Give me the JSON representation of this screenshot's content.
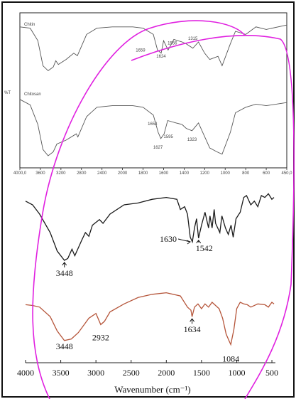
{
  "chart_data": [
    {
      "type": "line",
      "ylabel": "%T",
      "xlim": [
        4000,
        450
      ],
      "x_reversed": true,
      "xticks": [
        "4000,0",
        "3600",
        "3200",
        "2800",
        "2400",
        "2000",
        "1800",
        "1600",
        "1400",
        "1200",
        "1000",
        "800",
        "600",
        "450,0"
      ],
      "series": [
        {
          "name": "Chitin",
          "color": "#555555",
          "points": [
            [
              4000,
              82
            ],
            [
              3800,
              80
            ],
            [
              3650,
              60
            ],
            [
              3550,
              20
            ],
            [
              3450,
              12
            ],
            [
              3350,
              18
            ],
            [
              3300,
              28
            ],
            [
              3250,
              22
            ],
            [
              3100,
              30
            ],
            [
              2950,
              40
            ],
            [
              2880,
              36
            ],
            [
              2700,
              70
            ],
            [
              2500,
              80
            ],
            [
              2200,
              82
            ],
            [
              1900,
              82
            ],
            [
              1800,
              80
            ],
            [
              1700,
              70
            ],
            [
              1659,
              45
            ],
            [
              1624,
              40
            ],
            [
              1600,
              60
            ],
            [
              1556,
              45
            ],
            [
              1500,
              62
            ],
            [
              1420,
              58
            ],
            [
              1380,
              55
            ],
            [
              1315,
              48
            ],
            [
              1260,
              58
            ],
            [
              1200,
              40
            ],
            [
              1150,
              30
            ],
            [
              1070,
              35
            ],
            [
              1030,
              20
            ],
            [
              950,
              55
            ],
            [
              900,
              75
            ],
            [
              800,
              70
            ],
            [
              700,
              82
            ],
            [
              600,
              78
            ],
            [
              450,
              85
            ]
          ],
          "annotations": [
            {
              "x": 1659,
              "label": "1659"
            },
            {
              "x": 1624,
              "label": "1624"
            },
            {
              "x": 1556,
              "label": "1556"
            },
            {
              "x": 1315,
              "label": "1315"
            }
          ]
        },
        {
          "name": "Chitosan",
          "color": "#555555",
          "points": [
            [
              4000,
              82
            ],
            [
              3800,
              75
            ],
            [
              3650,
              50
            ],
            [
              3550,
              18
            ],
            [
              3450,
              10
            ],
            [
              3350,
              15
            ],
            [
              3280,
              25
            ],
            [
              3100,
              30
            ],
            [
              2900,
              38
            ],
            [
              2870,
              34
            ],
            [
              2700,
              60
            ],
            [
              2500,
              72
            ],
            [
              2200,
              74
            ],
            [
              1900,
              74
            ],
            [
              1800,
              72
            ],
            [
              1700,
              62
            ],
            [
              1653,
              40
            ],
            [
              1627,
              32
            ],
            [
              1595,
              38
            ],
            [
              1560,
              55
            ],
            [
              1480,
              52
            ],
            [
              1420,
              50
            ],
            [
              1380,
              45
            ],
            [
              1323,
              42
            ],
            [
              1260,
              52
            ],
            [
              1150,
              20
            ],
            [
              1080,
              15
            ],
            [
              1030,
              12
            ],
            [
              950,
              40
            ],
            [
              900,
              65
            ],
            [
              800,
              72
            ],
            [
              700,
              76
            ],
            [
              600,
              74
            ],
            [
              450,
              78
            ]
          ],
          "annotations": [
            {
              "x": 1653,
              "label": "1653"
            },
            {
              "x": 1595,
              "label": "1595"
            },
            {
              "x": 1627,
              "label": "1627"
            },
            {
              "x": 1323,
              "label": "1323"
            }
          ]
        }
      ]
    },
    {
      "type": "line",
      "xlabel": "Wavenumber (cm⁻¹)",
      "xlim": [
        4000,
        450
      ],
      "x_reversed": true,
      "xticks": [
        4000,
        3500,
        3000,
        2500,
        2000,
        1500,
        1000,
        500
      ],
      "series": [
        {
          "color": "#1a1a1a",
          "points": [
            [
              4000,
              84
            ],
            [
              3900,
              80
            ],
            [
              3800,
              70
            ],
            [
              3650,
              50
            ],
            [
              3550,
              30
            ],
            [
              3448,
              20
            ],
            [
              3400,
              22
            ],
            [
              3340,
              32
            ],
            [
              3300,
              25
            ],
            [
              3200,
              42
            ],
            [
              3150,
              50
            ],
            [
              3100,
              46
            ],
            [
              3050,
              58
            ],
            [
              2950,
              64
            ],
            [
              2900,
              60
            ],
            [
              2800,
              70
            ],
            [
              2600,
              80
            ],
            [
              2400,
              82
            ],
            [
              2200,
              86
            ],
            [
              2000,
              88
            ],
            [
              1850,
              86
            ],
            [
              1800,
              75
            ],
            [
              1740,
              78
            ],
            [
              1700,
              70
            ],
            [
              1660,
              45
            ],
            [
              1630,
              40
            ],
            [
              1600,
              55
            ],
            [
              1570,
              65
            ],
            [
              1542,
              44
            ],
            [
              1500,
              58
            ],
            [
              1450,
              72
            ],
            [
              1400,
              55
            ],
            [
              1380,
              68
            ],
            [
              1350,
              55
            ],
            [
              1320,
              75
            ],
            [
              1300,
              60
            ],
            [
              1240,
              50
            ],
            [
              1210,
              68
            ],
            [
              1160,
              55
            ],
            [
              1120,
              48
            ],
            [
              1080,
              58
            ],
            [
              1050,
              45
            ],
            [
              1010,
              65
            ],
            [
              950,
              72
            ],
            [
              900,
              88
            ],
            [
              860,
              90
            ],
            [
              800,
              80
            ],
            [
              750,
              84
            ],
            [
              700,
              78
            ],
            [
              650,
              90
            ],
            [
              600,
              88
            ],
            [
              550,
              92
            ],
            [
              500,
              86
            ],
            [
              470,
              88
            ]
          ],
          "annotations": [
            {
              "x": 3448,
              "label": "3448"
            },
            {
              "x": 1630,
              "label": "1630"
            },
            {
              "x": 1542,
              "label": "1542"
            }
          ]
        },
        {
          "color": "#b5553a",
          "points": [
            [
              4000,
              55
            ],
            [
              3900,
              54
            ],
            [
              3800,
              52
            ],
            [
              3650,
              40
            ],
            [
              3550,
              22
            ],
            [
              3448,
              10
            ],
            [
              3350,
              12
            ],
            [
              3250,
              20
            ],
            [
              3100,
              38
            ],
            [
              3000,
              44
            ],
            [
              2932,
              30
            ],
            [
              2880,
              34
            ],
            [
              2800,
              46
            ],
            [
              2600,
              56
            ],
            [
              2400,
              64
            ],
            [
              2200,
              68
            ],
            [
              2000,
              70
            ],
            [
              1800,
              66
            ],
            [
              1700,
              52
            ],
            [
              1650,
              48
            ],
            [
              1634,
              40
            ],
            [
              1600,
              52
            ],
            [
              1550,
              56
            ],
            [
              1500,
              50
            ],
            [
              1450,
              56
            ],
            [
              1400,
              52
            ],
            [
              1350,
              58
            ],
            [
              1300,
              54
            ],
            [
              1250,
              50
            ],
            [
              1200,
              38
            ],
            [
              1150,
              18
            ],
            [
              1100,
              8
            ],
            [
              1084,
              5
            ],
            [
              1040,
              24
            ],
            [
              1000,
              50
            ],
            [
              950,
              58
            ],
            [
              900,
              56
            ],
            [
              850,
              55
            ],
            [
              800,
              52
            ],
            [
              700,
              56
            ],
            [
              600,
              55
            ],
            [
              550,
              52
            ],
            [
              500,
              58
            ],
            [
              470,
              56
            ]
          ],
          "annotations": [
            {
              "x": 2932,
              "label": "2932"
            },
            {
              "x": 1634,
              "label": "1634"
            },
            {
              "x": 3448,
              "label": "3448"
            },
            {
              "x": 1084,
              "label": "1084"
            }
          ]
        }
      ]
    }
  ]
}
